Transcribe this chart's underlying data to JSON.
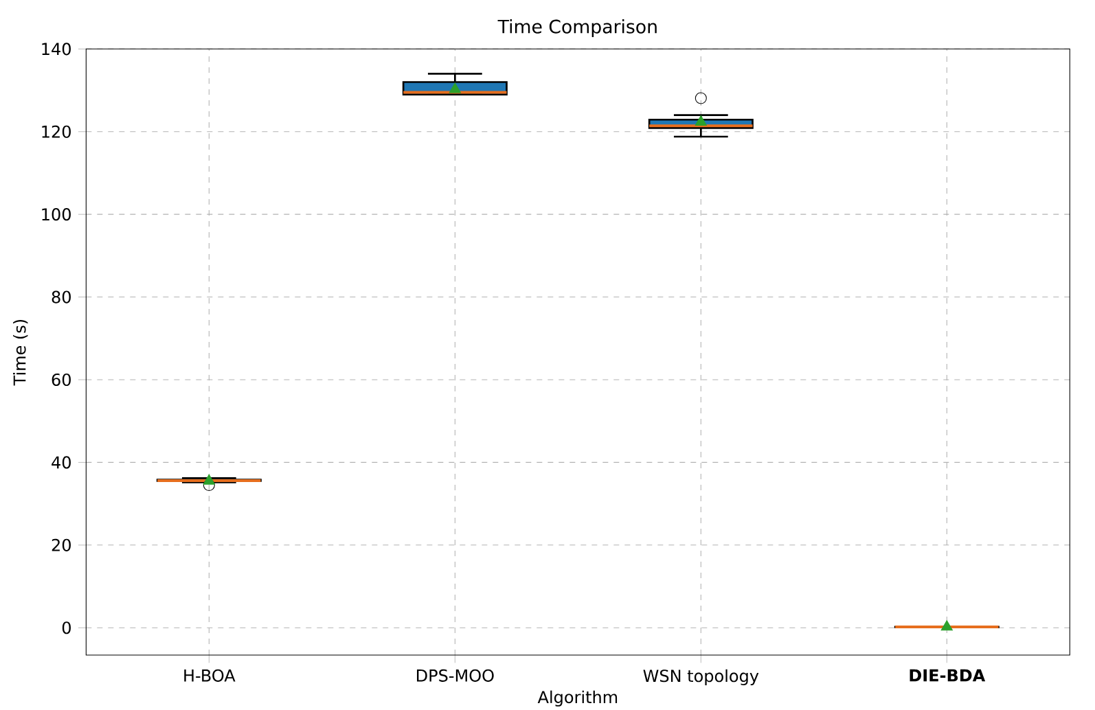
{
  "chart_data": {
    "type": "box",
    "title": "Time Comparison",
    "xlabel": "Algorithm",
    "ylabel": "Time (s)",
    "categories": [
      "H-BOA",
      "DPS-MOO",
      "WSN topology",
      "**DIE-BDA**"
    ],
    "color": "#1f77b4",
    "boxes": [
      {
        "low": 35.2,
        "q1": 35.5,
        "median": 35.6,
        "q3": 35.8,
        "high": 36.2,
        "mean": 35.5,
        "outliers": [
          34.5
        ]
      },
      {
        "low": 129,
        "q1": 129,
        "median": 129.5,
        "q3": 132,
        "high": 134,
        "mean": 130.2
      },
      {
        "low": 118.8,
        "q1": 120.9,
        "median": 121.4,
        "q3": 122.9,
        "high": 124,
        "mean": 122.3,
        "outliers": [
          128.1
        ]
      },
      {
        "low": 0.1,
        "q1": 0.15,
        "median": 0.2,
        "q3": 0.25,
        "high": 0.3,
        "mean": 0.2
      }
    ],
    "ylim": [
      -6.6,
      140
    ],
    "yticks": [
      0,
      20,
      40,
      60,
      80,
      100,
      120,
      140
    ],
    "grid": true
  }
}
